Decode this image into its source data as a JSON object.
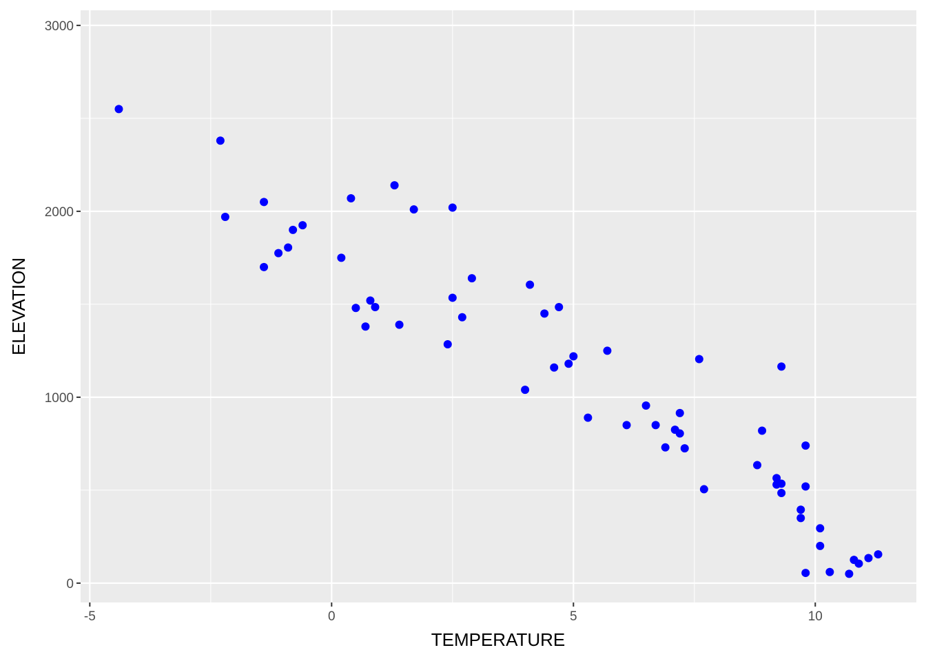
{
  "chart_data": {
    "type": "scatter",
    "title": "",
    "xlabel": "TEMPERATURE",
    "ylabel": "ELEVATION",
    "xlim": [
      -5.19,
      12.09
    ],
    "ylim": [
      -104,
      3081
    ],
    "x_ticks": [
      -5,
      0,
      5,
      10
    ],
    "y_ticks": [
      0,
      1000,
      2000,
      3000
    ],
    "x_minor": [
      -2.5,
      2.5,
      7.5
    ],
    "y_minor": [
      500,
      1500,
      2500
    ],
    "grid": true,
    "point_color": "#0000FF",
    "panel_color": "#EBEBEB",
    "points": [
      [
        -4.4,
        2550
      ],
      [
        -2.3,
        2380
      ],
      [
        -2.2,
        1970
      ],
      [
        -1.4,
        2050
      ],
      [
        -1.4,
        1700
      ],
      [
        -1.1,
        1775
      ],
      [
        -0.9,
        1805
      ],
      [
        -0.8,
        1900
      ],
      [
        -0.6,
        1925
      ],
      [
        0.2,
        1750
      ],
      [
        0.4,
        2070
      ],
      [
        0.5,
        1480
      ],
      [
        0.7,
        1380
      ],
      [
        0.8,
        1520
      ],
      [
        0.9,
        1485
      ],
      [
        1.3,
        2140
      ],
      [
        1.4,
        1390
      ],
      [
        1.7,
        2010
      ],
      [
        2.4,
        1285
      ],
      [
        2.5,
        2020
      ],
      [
        2.5,
        1535
      ],
      [
        2.7,
        1430
      ],
      [
        2.9,
        1640
      ],
      [
        4.0,
        1040
      ],
      [
        4.1,
        1605
      ],
      [
        4.4,
        1450
      ],
      [
        4.6,
        1160
      ],
      [
        4.7,
        1485
      ],
      [
        4.9,
        1180
      ],
      [
        5.0,
        1220
      ],
      [
        5.3,
        890
      ],
      [
        5.7,
        1250
      ],
      [
        6.1,
        850
      ],
      [
        6.5,
        955
      ],
      [
        6.7,
        850
      ],
      [
        6.9,
        730
      ],
      [
        7.1,
        825
      ],
      [
        7.2,
        915
      ],
      [
        7.2,
        805
      ],
      [
        7.3,
        725
      ],
      [
        7.6,
        1205
      ],
      [
        7.7,
        505
      ],
      [
        8.8,
        635
      ],
      [
        8.9,
        820
      ],
      [
        9.2,
        565
      ],
      [
        9.2,
        530
      ],
      [
        9.3,
        535
      ],
      [
        9.3,
        485
      ],
      [
        9.3,
        1165
      ],
      [
        9.7,
        395
      ],
      [
        9.7,
        350
      ],
      [
        9.8,
        740
      ],
      [
        9.8,
        520
      ],
      [
        9.8,
        55
      ],
      [
        10.1,
        295
      ],
      [
        10.1,
        200
      ],
      [
        10.3,
        60
      ],
      [
        10.7,
        50
      ],
      [
        10.8,
        125
      ],
      [
        10.9,
        105
      ],
      [
        11.1,
        135
      ],
      [
        11.3,
        155
      ]
    ]
  }
}
